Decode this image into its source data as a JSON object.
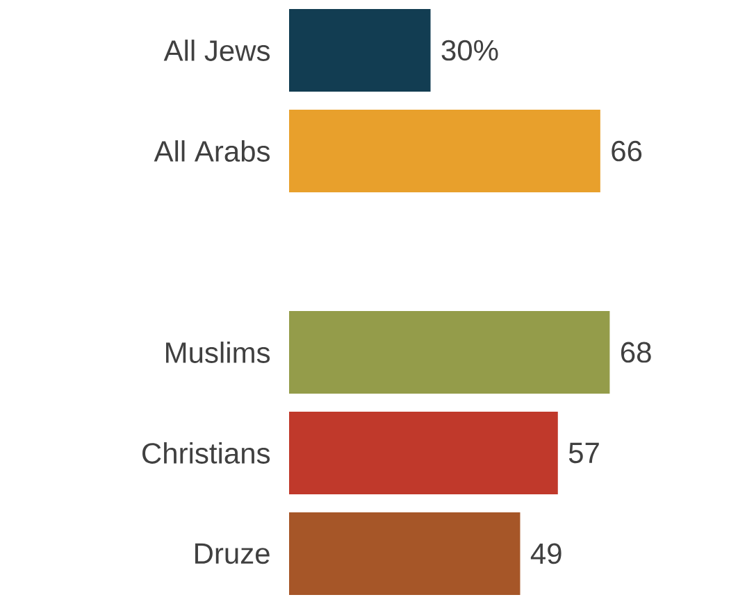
{
  "chart_data": {
    "type": "bar",
    "orientation": "horizontal",
    "categories": [
      "All Jews",
      "All Arabs",
      null,
      "Muslims",
      "Christians",
      "Druze"
    ],
    "values": [
      30,
      66,
      null,
      68,
      57,
      49
    ],
    "value_labels": [
      "30%",
      "66",
      null,
      "68",
      "57",
      "49"
    ],
    "colors": [
      "#123d52",
      "#e8a02c",
      null,
      "#949c4a",
      "#c0392b",
      "#a65628"
    ]
  }
}
